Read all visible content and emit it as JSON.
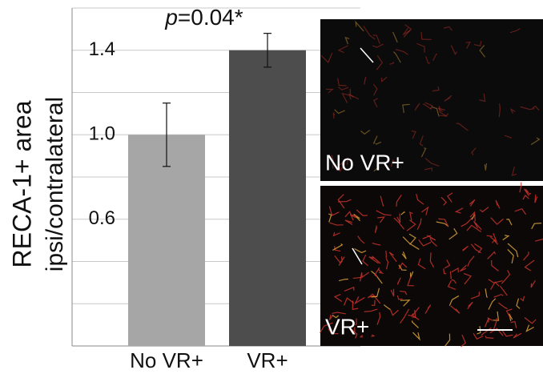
{
  "chart_data": {
    "type": "bar",
    "y_label_lines": [
      "RECA-1+ area",
      "ipsi/contralateral"
    ],
    "annotation_parts": [
      "p",
      "=0.04*"
    ],
    "categories": [
      "No VR+",
      "VR+"
    ],
    "values": [
      1.0,
      1.4
    ],
    "errors": [
      0.15,
      0.08
    ],
    "colors": [
      "#a6a6a6",
      "#4d4d4d"
    ],
    "ylim": [
      0,
      1.6
    ],
    "yticks": [
      0.6,
      {
        "value": 1.0,
        "label": "1.0"
      },
      1.4
    ],
    "ygrid": [
      0.2,
      0.4,
      0.6,
      0.8,
      1.0,
      1.2,
      1.4,
      1.6
    ],
    "grid": true,
    "panel_labels": [
      "No VR+",
      "VR+"
    ]
  }
}
